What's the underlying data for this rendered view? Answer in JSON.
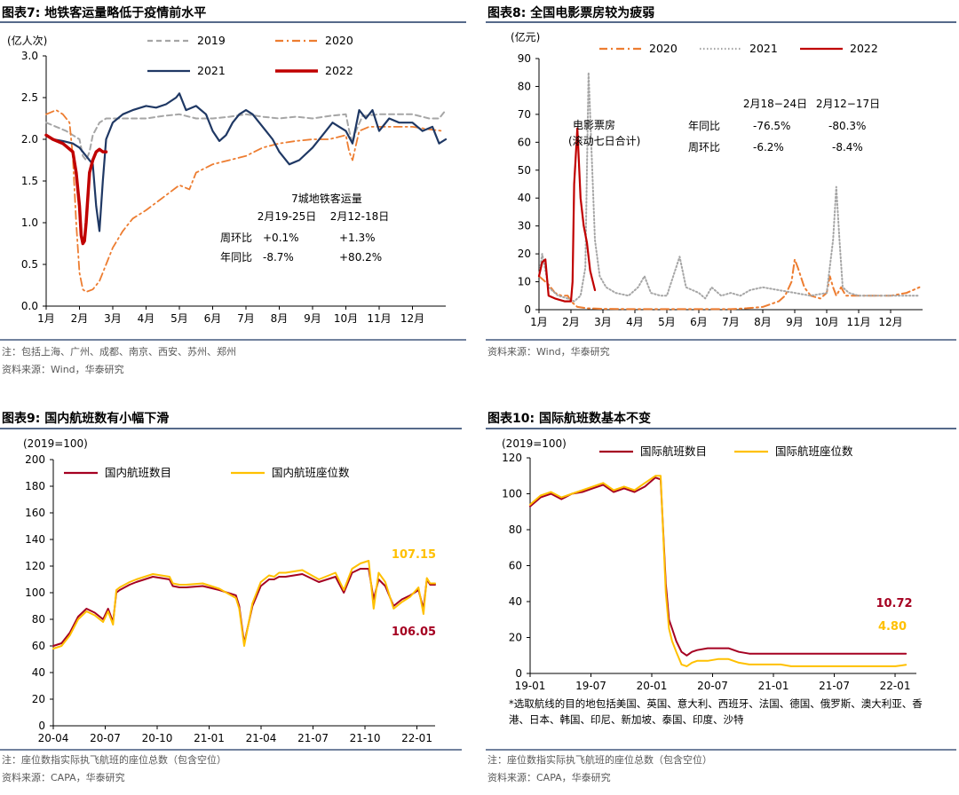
{
  "colors": {
    "navy": "#1f3864",
    "red": "#c00000",
    "gray": "#a6a6a6",
    "orange": "#ed7d31",
    "darkred": "#a50021",
    "yellow": "#ffc000",
    "rule": "#1f3864"
  },
  "panel1": {
    "title": "图表7:  地铁客运量略低于疫情前水平",
    "note": "注：包括上海、广州、成都、南京、西安、苏州、郑州",
    "source": "资料来源：Wind，华泰研究",
    "annotation": {
      "heading": "7城地铁客运量",
      "col1": "2月19-25日",
      "col2": "2月12-18日",
      "row1_label": "周环比",
      "row1_v1": "+0.1%",
      "row1_v2": "+1.3%",
      "row2_label": "年同比",
      "row2_v1": "-8.7%",
      "row2_v2": "+80.2%"
    },
    "chart_data": {
      "type": "line",
      "title": "地铁客运量",
      "ylabel": "(亿人次)",
      "ylim": [
        0,
        3
      ],
      "yticks": [
        "0.0",
        "0.5",
        "1.0",
        "1.5",
        "2.0",
        "2.5",
        "3.0"
      ],
      "xlim": [
        1,
        13
      ],
      "categories": [
        "1月",
        "2月",
        "3月",
        "4月",
        "5月",
        "6月",
        "7月",
        "8月",
        "9月",
        "10月",
        "11月",
        "12月"
      ],
      "series": [
        {
          "name": "2019",
          "style": "dash",
          "color": "#a6a6a6",
          "width": 2,
          "x": [
            1,
            1.3,
            1.6,
            1.8,
            2.0,
            2.1,
            2.2,
            2.3,
            2.4,
            2.6,
            2.8,
            3.0,
            3.3,
            3.6,
            4.0,
            4.5,
            5.0,
            5.5,
            6.0,
            6.5,
            7.0,
            7.5,
            8.0,
            8.5,
            9.0,
            9.5,
            10.0,
            10.1,
            10.2,
            10.3,
            10.5,
            11.0,
            11.5,
            12.0,
            12.5,
            12.8,
            13.0
          ],
          "y": [
            2.2,
            2.15,
            2.1,
            2.05,
            2.0,
            1.8,
            1.75,
            1.85,
            2.05,
            2.2,
            2.25,
            2.25,
            2.25,
            2.25,
            2.25,
            2.28,
            2.3,
            2.25,
            2.25,
            2.27,
            2.3,
            2.27,
            2.25,
            2.27,
            2.25,
            2.28,
            2.3,
            2.1,
            1.95,
            2.1,
            2.28,
            2.3,
            2.3,
            2.3,
            2.25,
            2.25,
            2.35
          ]
        },
        {
          "name": "2020",
          "style": "dashdot",
          "color": "#ed7d31",
          "width": 1.8,
          "x": [
            1,
            1.3,
            1.5,
            1.7,
            1.8,
            1.9,
            2.0,
            2.1,
            2.2,
            2.4,
            2.6,
            2.8,
            3.0,
            3.3,
            3.6,
            4.0,
            4.5,
            5.0,
            5.3,
            5.5,
            6.0,
            6.5,
            7.0,
            7.5,
            8.0,
            8.5,
            9.0,
            9.5,
            10.0,
            10.1,
            10.2,
            10.4,
            10.7,
            11.0,
            11.5,
            12.0,
            12.5,
            12.9
          ],
          "y": [
            2.3,
            2.35,
            2.3,
            2.2,
            1.8,
            1.0,
            0.4,
            0.2,
            0.17,
            0.2,
            0.3,
            0.5,
            0.7,
            0.9,
            1.05,
            1.15,
            1.3,
            1.45,
            1.4,
            1.6,
            1.7,
            1.75,
            1.8,
            1.9,
            1.95,
            1.98,
            2.0,
            2.0,
            2.05,
            1.85,
            1.75,
            2.1,
            2.15,
            2.15,
            2.15,
            2.15,
            2.12,
            2.1
          ]
        },
        {
          "name": "2021",
          "style": "solid",
          "color": "#1f3864",
          "width": 2.2,
          "x": [
            1,
            1.2,
            1.5,
            1.8,
            2.0,
            2.2,
            2.4,
            2.5,
            2.6,
            2.7,
            2.8,
            3.0,
            3.3,
            3.6,
            4.0,
            4.3,
            4.6,
            4.9,
            5.0,
            5.2,
            5.5,
            5.8,
            6.0,
            6.2,
            6.4,
            6.6,
            6.8,
            7.0,
            7.2,
            7.4,
            7.6,
            7.8,
            8.0,
            8.3,
            8.6,
            9.0,
            9.3,
            9.6,
            10.0,
            10.2,
            10.4,
            10.6,
            10.8,
            11.0,
            11.3,
            11.6,
            12.0,
            12.3,
            12.6,
            12.8,
            13.0
          ],
          "y": [
            2.05,
            2.0,
            1.98,
            1.95,
            1.9,
            1.8,
            1.7,
            1.2,
            0.9,
            1.5,
            2.0,
            2.2,
            2.3,
            2.35,
            2.4,
            2.38,
            2.42,
            2.5,
            2.55,
            2.35,
            2.4,
            2.3,
            2.1,
            1.98,
            2.05,
            2.2,
            2.3,
            2.35,
            2.3,
            2.2,
            2.1,
            2.0,
            1.85,
            1.7,
            1.75,
            1.9,
            2.05,
            2.2,
            2.1,
            1.95,
            2.35,
            2.25,
            2.35,
            2.1,
            2.25,
            2.2,
            2.2,
            2.1,
            2.15,
            1.95,
            2.0
          ]
        },
        {
          "name": "2022",
          "style": "solid",
          "color": "#c00000",
          "width": 3.5,
          "x": [
            1,
            1.2,
            1.5,
            1.8,
            1.9,
            2.0,
            2.05,
            2.1,
            2.15,
            2.2,
            2.3,
            2.4,
            2.5,
            2.6,
            2.7,
            2.8
          ],
          "y": [
            2.05,
            2.0,
            1.95,
            1.85,
            1.6,
            1.2,
            0.85,
            0.75,
            0.78,
            1.0,
            1.6,
            1.75,
            1.85,
            1.88,
            1.85,
            1.85
          ]
        }
      ]
    }
  },
  "panel2": {
    "title": "图表8:  全国电影票房较为疲弱",
    "source": "资料来源：Wind，华泰研究",
    "inline_label_1": "电影票房",
    "inline_label_2": "(滚动七日合计)",
    "annotation": {
      "col1": "2月18−24日",
      "col2": "2月12−17日",
      "row1_label": "年同比",
      "row1_v1": "-76.5%",
      "row1_v2": "-80.3%",
      "row2_label": "周环比",
      "row2_v1": "-6.2%",
      "row2_v2": "-8.4%"
    },
    "chart_data": {
      "type": "line",
      "title": "全国电影票房",
      "ylabel": "(亿元)",
      "ylim": [
        0,
        90
      ],
      "yticks": [
        "0",
        "10",
        "20",
        "30",
        "40",
        "50",
        "60",
        "70",
        "80",
        "90"
      ],
      "xlim": [
        1,
        13
      ],
      "categories": [
        "1月",
        "2月",
        "3月",
        "4月",
        "5月",
        "6月",
        "7月",
        "8月",
        "9月",
        "10月",
        "11月",
        "12月"
      ],
      "series": [
        {
          "name": "2020",
          "style": "dashdot",
          "color": "#ed7d31",
          "width": 2,
          "x": [
            1,
            1.1,
            1.3,
            1.5,
            1.7,
            1.9,
            2.0,
            2.2,
            2.5,
            3,
            4,
            5,
            6,
            7,
            7.5,
            8,
            8.5,
            8.7,
            8.9,
            9.0,
            9.1,
            9.3,
            9.5,
            9.8,
            10.0,
            10.1,
            10.2,
            10.3,
            10.45,
            10.6,
            11,
            11.5,
            12,
            12.5,
            12.9
          ],
          "y": [
            12,
            11,
            9,
            6,
            5,
            5,
            3,
            1,
            0.5,
            0.3,
            0.2,
            0.2,
            0.2,
            0.2,
            0.5,
            1,
            3,
            5,
            10,
            18,
            15,
            8,
            5,
            4,
            6,
            12,
            8,
            5,
            8,
            5,
            5,
            5,
            5,
            6,
            8
          ]
        },
        {
          "name": "2021",
          "style": "dot",
          "color": "#a6a6a6",
          "width": 2,
          "x": [
            1,
            1.1,
            1.3,
            1.6,
            1.9,
            2.1,
            2.3,
            2.45,
            2.55,
            2.65,
            2.75,
            2.9,
            3.1,
            3.4,
            3.8,
            4.1,
            4.3,
            4.5,
            4.8,
            5.0,
            5.2,
            5.4,
            5.6,
            6.0,
            6.2,
            6.4,
            6.7,
            7.0,
            7.3,
            7.6,
            8,
            8.5,
            9,
            9.5,
            10.0,
            10.2,
            10.3,
            10.4,
            10.5,
            10.7,
            11,
            11.5,
            12,
            12.5,
            12.9
          ],
          "y": [
            12,
            20,
            8,
            5,
            4,
            3,
            5,
            15,
            85,
            55,
            25,
            12,
            8,
            6,
            5,
            8,
            12,
            6,
            5,
            5,
            12,
            19,
            8,
            6,
            4,
            8,
            5,
            6,
            5,
            7,
            8,
            7,
            6,
            5,
            6,
            25,
            44,
            25,
            8,
            6,
            5,
            5,
            5,
            5,
            5
          ]
        },
        {
          "name": "2022",
          "style": "solid",
          "color": "#c00000",
          "width": 2.2,
          "x": [
            1,
            1.1,
            1.2,
            1.3,
            1.5,
            1.8,
            2.0,
            2.05,
            2.1,
            2.2,
            2.3,
            2.4,
            2.5,
            2.6,
            2.75
          ],
          "y": [
            12,
            17,
            18,
            5,
            4,
            3,
            3,
            10,
            45,
            65,
            40,
            30,
            24,
            14,
            7
          ]
        }
      ]
    }
  },
  "panel3": {
    "title": "图表9:  国内航班数有小幅下滑",
    "note": "注：座位数指实际执飞航班的座位总数（包含空位）",
    "source": "资料来源：CAPA，华泰研究",
    "label_seats": "107.15",
    "label_flights": "106.05",
    "chart_data": {
      "type": "line",
      "title": "国内航班数",
      "ylabel": "(2019=100)",
      "ylim": [
        0,
        200
      ],
      "yticks": [
        "0",
        "20",
        "40",
        "60",
        "80",
        "100",
        "120",
        "140",
        "160",
        "180",
        "200"
      ],
      "xlim": [
        0,
        23
      ],
      "categories": [
        "20-04",
        "20-07",
        "20-10",
        "21-01",
        "21-04",
        "21-07",
        "21-10",
        "22-01"
      ],
      "series": [
        {
          "name": "国内航班数目",
          "style": "solid",
          "color": "#a50021",
          "width": 2,
          "x": [
            0,
            0.5,
            1,
            1.5,
            2,
            2.5,
            3,
            3.3,
            3.6,
            3.8,
            4.0,
            4.3,
            4.6,
            5,
            6,
            7,
            7.2,
            7.6,
            8,
            9,
            10,
            11,
            11.2,
            11.5,
            12,
            12.5,
            13,
            13.3,
            13.6,
            14,
            15,
            16,
            17,
            17.5,
            18,
            18.5,
            19,
            19.3,
            19.6,
            20,
            20.5,
            21,
            21.5,
            22,
            22.3,
            22.5,
            22.7,
            23
          ],
          "y": [
            60,
            62,
            70,
            82,
            88,
            85,
            80,
            88,
            78,
            100,
            102,
            104,
            106,
            108,
            112,
            110,
            105,
            104,
            104,
            105,
            102,
            98,
            90,
            62,
            90,
            105,
            110,
            110,
            112,
            112,
            114,
            108,
            112,
            100,
            115,
            118,
            118,
            95,
            110,
            105,
            90,
            95,
            98,
            102,
            88,
            110,
            106,
            106
          ]
        },
        {
          "name": "国内航班座位数",
          "style": "solid",
          "color": "#ffc000",
          "width": 2,
          "x": [
            0,
            0.5,
            1,
            1.5,
            2,
            2.5,
            3,
            3.3,
            3.6,
            3.8,
            4.0,
            4.3,
            4.6,
            5,
            6,
            7,
            7.2,
            7.6,
            8,
            9,
            10,
            11,
            11.2,
            11.5,
            12,
            12.5,
            13,
            13.3,
            13.6,
            14,
            15,
            16,
            17,
            17.5,
            18,
            18.5,
            19,
            19.3,
            19.6,
            20,
            20.5,
            21,
            21.5,
            22,
            22.3,
            22.5,
            22.7,
            23
          ],
          "y": [
            58,
            60,
            68,
            80,
            86,
            83,
            78,
            86,
            76,
            102,
            104,
            106,
            108,
            110,
            114,
            112,
            107,
            106,
            106,
            107,
            103,
            96,
            88,
            60,
            92,
            108,
            113,
            112,
            115,
            115,
            117,
            110,
            115,
            102,
            118,
            122,
            124,
            88,
            115,
            108,
            88,
            93,
            97,
            104,
            84,
            111,
            107,
            107
          ]
        }
      ]
    }
  },
  "panel4": {
    "title": "图表10:  国际航班数基本不变",
    "note": "注：座位数指实际执飞航班的座位总数（包含空位）",
    "source": "资料来源：CAPA，华泰研究",
    "footnote": "*选取航线的目的地包括美国、英国、意大利、西班牙、法国、德国、俄罗斯、澳大利亚、香港、日本、韩国、印尼、新加坡、泰国、印度、沙特",
    "label_flights": "10.72",
    "label_seats": "4.80",
    "chart_data": {
      "type": "line",
      "title": "国际航班数",
      "ylabel": "(2019=100)",
      "ylim": [
        0,
        120
      ],
      "yticks": [
        "0",
        "20",
        "40",
        "60",
        "80",
        "100",
        "120"
      ],
      "xlim": [
        0,
        37
      ],
      "categories": [
        "19-01",
        "19-07",
        "20-01",
        "20-07",
        "21-01",
        "21-07",
        "22-01"
      ],
      "series": [
        {
          "name": "国际航班数目",
          "style": "solid",
          "color": "#a50021",
          "width": 2,
          "x": [
            0,
            1,
            2,
            3,
            4,
            5,
            6,
            7,
            8,
            9,
            10,
            11,
            12,
            12.5,
            13,
            13.3,
            13.6,
            14,
            14.5,
            15,
            15.5,
            16,
            17,
            18,
            19,
            20,
            21,
            22,
            23,
            24,
            25,
            26,
            27,
            28,
            29,
            30,
            31,
            32,
            33,
            34,
            35,
            36
          ],
          "y": [
            93,
            98,
            100,
            97,
            100,
            101,
            103,
            105,
            101,
            103,
            101,
            104,
            109,
            108,
            50,
            30,
            25,
            18,
            12,
            10,
            12,
            13,
            14,
            14,
            14,
            12,
            11,
            11,
            11,
            11,
            11,
            11,
            11,
            11,
            11,
            11,
            11,
            11,
            11,
            11,
            11,
            11
          ]
        },
        {
          "name": "国际航班座位数",
          "style": "solid",
          "color": "#ffc000",
          "width": 2,
          "x": [
            0,
            1,
            2,
            3,
            4,
            5,
            6,
            7,
            8,
            9,
            10,
            11,
            12,
            12.5,
            13,
            13.3,
            13.6,
            14,
            14.5,
            15,
            15.5,
            16,
            17,
            18,
            19,
            20,
            21,
            22,
            23,
            24,
            25,
            26,
            27,
            28,
            29,
            30,
            31,
            32,
            33,
            34,
            35,
            36
          ],
          "y": [
            94,
            99,
            101,
            98,
            100,
            102,
            104,
            106,
            102,
            104,
            102,
            106,
            110,
            110,
            45,
            25,
            18,
            12,
            5,
            4,
            6,
            7,
            7,
            8,
            8,
            6,
            5,
            5,
            5,
            5,
            4,
            4,
            4,
            4,
            4,
            4,
            4,
            4,
            4,
            4,
            4,
            4.8
          ]
        }
      ]
    }
  }
}
